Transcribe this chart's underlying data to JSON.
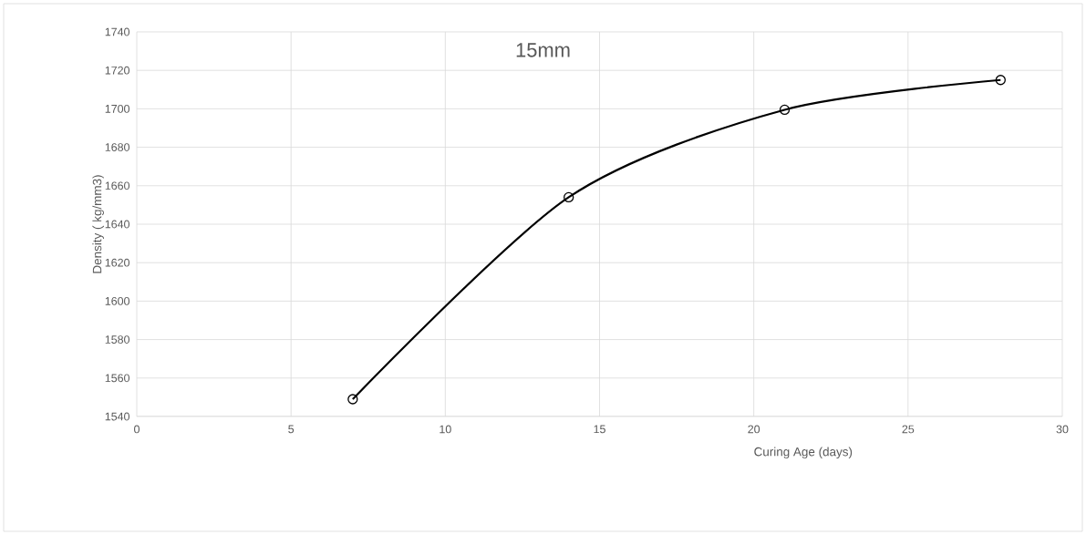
{
  "chart_data": {
    "type": "line",
    "title": "15mm",
    "xlabel": "Curing Age (days)",
    "ylabel": "Density ( kg/mm3)",
    "x": [
      7,
      14,
      21,
      28
    ],
    "values": [
      1549,
      1654,
      1699.5,
      1715
    ],
    "color": "#000000",
    "xlim": [
      0,
      30
    ],
    "xticks": [
      0,
      5,
      10,
      15,
      20,
      25,
      30
    ],
    "ylim": [
      1540,
      1740
    ],
    "yticks": [
      1540,
      1560,
      1580,
      1600,
      1620,
      1640,
      1660,
      1680,
      1700,
      1720,
      1740
    ],
    "grid": true,
    "marker": "circle",
    "line_style": "solid"
  }
}
